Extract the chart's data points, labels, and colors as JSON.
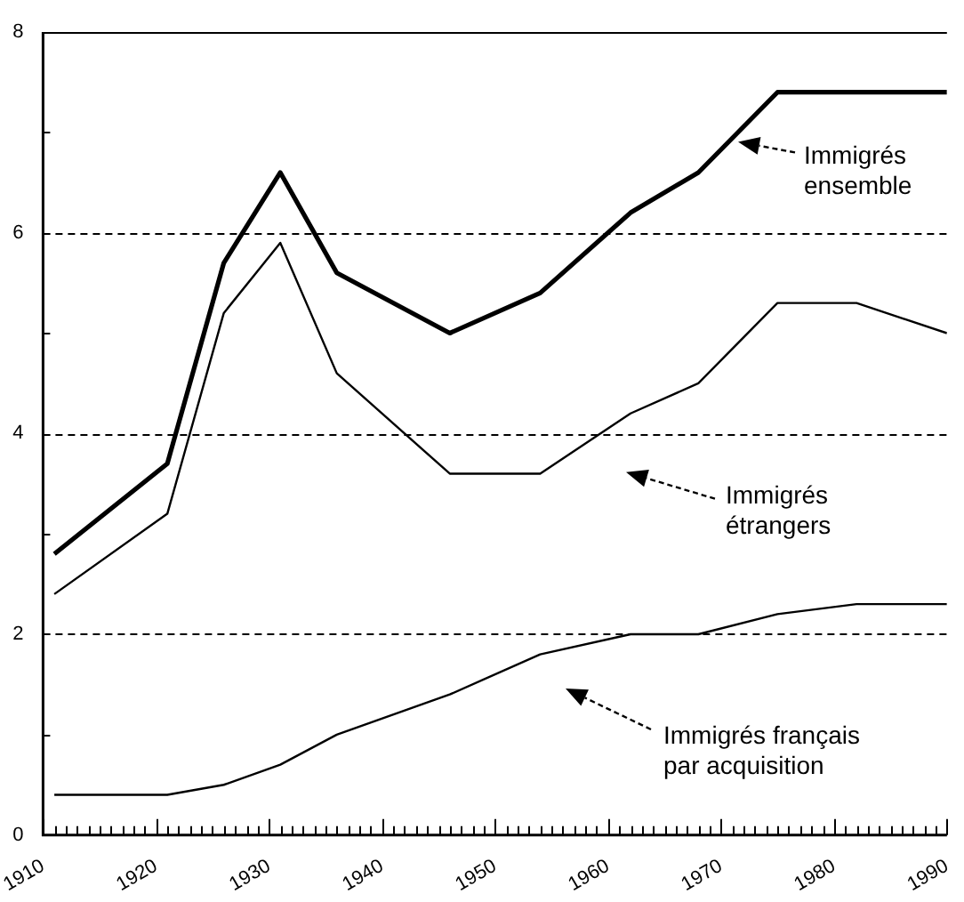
{
  "chart_data": {
    "type": "line",
    "x": [
      1911,
      1921,
      1926,
      1931,
      1936,
      1946,
      1954,
      1962,
      1968,
      1975,
      1982,
      1990
    ],
    "series": [
      {
        "color": "#000000",
        "values": [
          2.8,
          3.7,
          5.7,
          6.6,
          5.6,
          5.0,
          5.4,
          6.2,
          6.6,
          7.4,
          7.4,
          7.4
        ]
      },
      {
        "color": "#000000",
        "values": [
          2.4,
          3.2,
          5.2,
          5.9,
          4.6,
          3.6,
          3.6,
          4.2,
          4.5,
          5.3,
          5.3,
          5.0
        ]
      },
      {
        "color": "#000000",
        "values": [
          0.4,
          0.4,
          0.5,
          0.7,
          1.0,
          1.4,
          1.8,
          2.0,
          2.0,
          2.2,
          2.3,
          2.3
        ]
      }
    ],
    "xlim": [
      1910,
      1990
    ],
    "xticks": [
      1910,
      {
        "value": 1911,
        "label": null
      },
      {
        "value": 1912,
        "label": null
      },
      {
        "value": 1913,
        "label": null
      },
      {
        "value": 1914,
        "label": null
      },
      {
        "value": 1915,
        "label": null
      },
      {
        "value": 1916,
        "label": null
      },
      {
        "value": 1917,
        "label": null
      },
      {
        "value": 1918,
        "label": null
      },
      {
        "value": 1919,
        "label": null
      },
      1920,
      {
        "value": 1921,
        "label": null
      },
      {
        "value": 1922,
        "label": null
      },
      {
        "value": 1923,
        "label": null
      },
      {
        "value": 1924,
        "label": null
      },
      {
        "value": 1925,
        "label": null
      },
      {
        "value": 1926,
        "label": null
      },
      {
        "value": 1927,
        "label": null
      },
      {
        "value": 1928,
        "label": null
      },
      {
        "value": 1929,
        "label": null
      },
      1930,
      {
        "value": 1931,
        "label": null
      },
      {
        "value": 1932,
        "label": null
      },
      {
        "value": 1933,
        "label": null
      },
      {
        "value": 1934,
        "label": null
      },
      {
        "value": 1935,
        "label": null
      },
      {
        "value": 1936,
        "label": null
      },
      {
        "value": 1937,
        "label": null
      },
      {
        "value": 1938,
        "label": null
      },
      {
        "value": 1939,
        "label": null
      },
      1940,
      {
        "value": 1941,
        "label": null
      },
      {
        "value": 1942,
        "label": null
      },
      {
        "value": 1943,
        "label": null
      },
      {
        "value": 1944,
        "label": null
      },
      {
        "value": 1945,
        "label": null
      },
      {
        "value": 1946,
        "label": null
      },
      {
        "value": 1947,
        "label": null
      },
      {
        "value": 1948,
        "label": null
      },
      {
        "value": 1949,
        "label": null
      },
      1950,
      {
        "value": 1951,
        "label": null
      },
      {
        "value": 1952,
        "label": null
      },
      {
        "value": 1953,
        "label": null
      },
      {
        "value": 1954,
        "label": null
      },
      {
        "value": 1955,
        "label": null
      },
      {
        "value": 1956,
        "label": null
      },
      {
        "value": 1957,
        "label": null
      },
      {
        "value": 1958,
        "label": null
      },
      {
        "value": 1959,
        "label": null
      },
      1960,
      {
        "value": 1961,
        "label": null
      },
      {
        "value": 1962,
        "label": null
      },
      {
        "value": 1963,
        "label": null
      },
      {
        "value": 1964,
        "label": null
      },
      {
        "value": 1965,
        "label": null
      },
      {
        "value": 1966,
        "label": null
      },
      {
        "value": 1967,
        "label": null
      },
      {
        "value": 1968,
        "label": null
      },
      {
        "value": 1969,
        "label": null
      },
      1970,
      {
        "value": 1971,
        "label": null
      },
      {
        "value": 1972,
        "label": null
      },
      {
        "value": 1973,
        "label": null
      },
      {
        "value": 1974,
        "label": null
      },
      {
        "value": 1975,
        "label": null
      },
      {
        "value": 1976,
        "label": null
      },
      {
        "value": 1977,
        "label": null
      },
      {
        "value": 1978,
        "label": null
      },
      {
        "value": 1979,
        "label": null
      },
      1980,
      {
        "value": 1981,
        "label": null
      },
      {
        "value": 1982,
        "label": null
      },
      {
        "value": 1983,
        "label": null
      },
      {
        "value": 1984,
        "label": null
      },
      {
        "value": 1985,
        "label": null
      },
      {
        "value": 1986,
        "label": null
      },
      {
        "value": 1987,
        "label": null
      },
      {
        "value": 1988,
        "label": null
      },
      {
        "value": 1989,
        "label": null
      },
      1990
    ],
    "ylim": [
      0,
      8
    ],
    "yticks": [
      0,
      {
        "value": 1,
        "label": null
      },
      2,
      {
        "value": 3,
        "label": null
      },
      4,
      {
        "value": 5,
        "label": null
      },
      6,
      {
        "value": 7,
        "label": null
      },
      8
    ],
    "grid": "y",
    "line_style": "solid",
    "marker": "none",
    "legend": false,
    "annotations": [
      "Immigrés\nensemble",
      "Immigrés\nétrangers",
      "Immigrés français\npar acquisition"
    ]
  }
}
